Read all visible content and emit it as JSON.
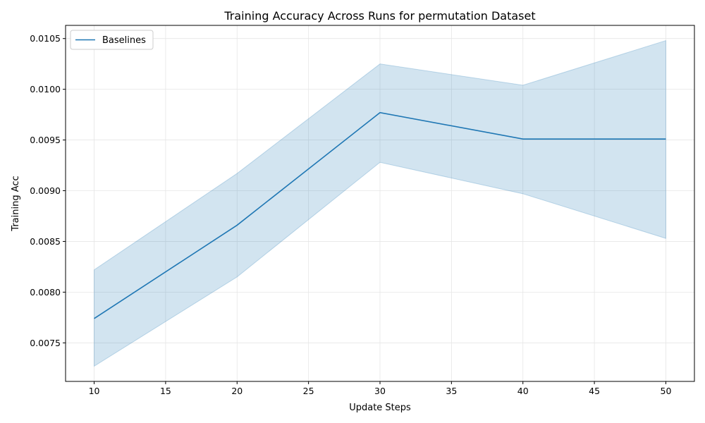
{
  "chart_data": {
    "type": "line",
    "title": "Training Accuracy Across Runs for permutation Dataset",
    "xlabel": "Update Steps",
    "ylabel": "Training Acc",
    "xlim": [
      8,
      52
    ],
    "ylim": [
      0.00712,
      0.01063
    ],
    "x_ticks": [
      10,
      15,
      20,
      25,
      30,
      35,
      40,
      45,
      50
    ],
    "y_ticks": [
      0.0075,
      0.008,
      0.0085,
      0.009,
      0.0095,
      0.01,
      0.0105
    ],
    "y_tick_labels": [
      "0.0075",
      "0.0080",
      "0.0085",
      "0.0090",
      "0.0095",
      "0.0100",
      "0.0105"
    ],
    "grid": true,
    "legend_position": "top-left",
    "series": [
      {
        "name": "Baselines",
        "color": "#1f77b4",
        "x": [
          10,
          20,
          30,
          40,
          50
        ],
        "y": [
          0.00774,
          0.00866,
          0.00977,
          0.00951,
          0.00951
        ],
        "lower": [
          0.00727,
          0.00815,
          0.00928,
          0.00897,
          0.00853
        ],
        "upper": [
          0.00822,
          0.00917,
          0.01025,
          0.01004,
          0.01048
        ]
      }
    ]
  }
}
